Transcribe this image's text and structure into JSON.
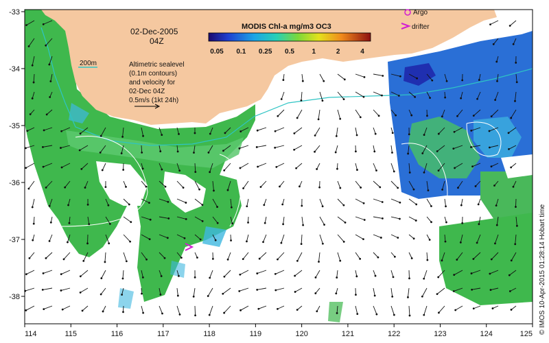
{
  "map": {
    "date": "02-Dec-2005",
    "time": "04Z",
    "colorbar_title": "MODIS Chl-a mg/m3 OC3",
    "colorbar_ticks": [
      "0.05",
      "0.1",
      "0.25",
      "0.5",
      "1",
      "2",
      "4"
    ],
    "contour_label": "200m",
    "sealevel_text": [
      "Altimetric sealevel",
      "(0.1m contours)",
      "and velocity for",
      "02-Dec 04Z",
      "0.5m/s (1kt 24h)"
    ],
    "legend": {
      "argo": "Argo",
      "drifter": "drifter"
    },
    "credit": "© IMOS 10-Apr-2015 01:28:14 Hobart time",
    "x_ticks": [
      "114",
      "115",
      "116",
      "117",
      "118",
      "119",
      "120",
      "121",
      "122",
      "123",
      "124",
      "125"
    ],
    "y_ticks": [
      "-33",
      "-34",
      "-35",
      "-36",
      "-37",
      "-38"
    ],
    "colors": {
      "land": "#f5c8a0",
      "chl_green": "#3cb84a",
      "chl_light": "#55c46a",
      "chl_blue": "#2a6fd6",
      "chl_cyan": "#3fb8e0",
      "contour_200m": "#2ec4c4"
    }
  }
}
